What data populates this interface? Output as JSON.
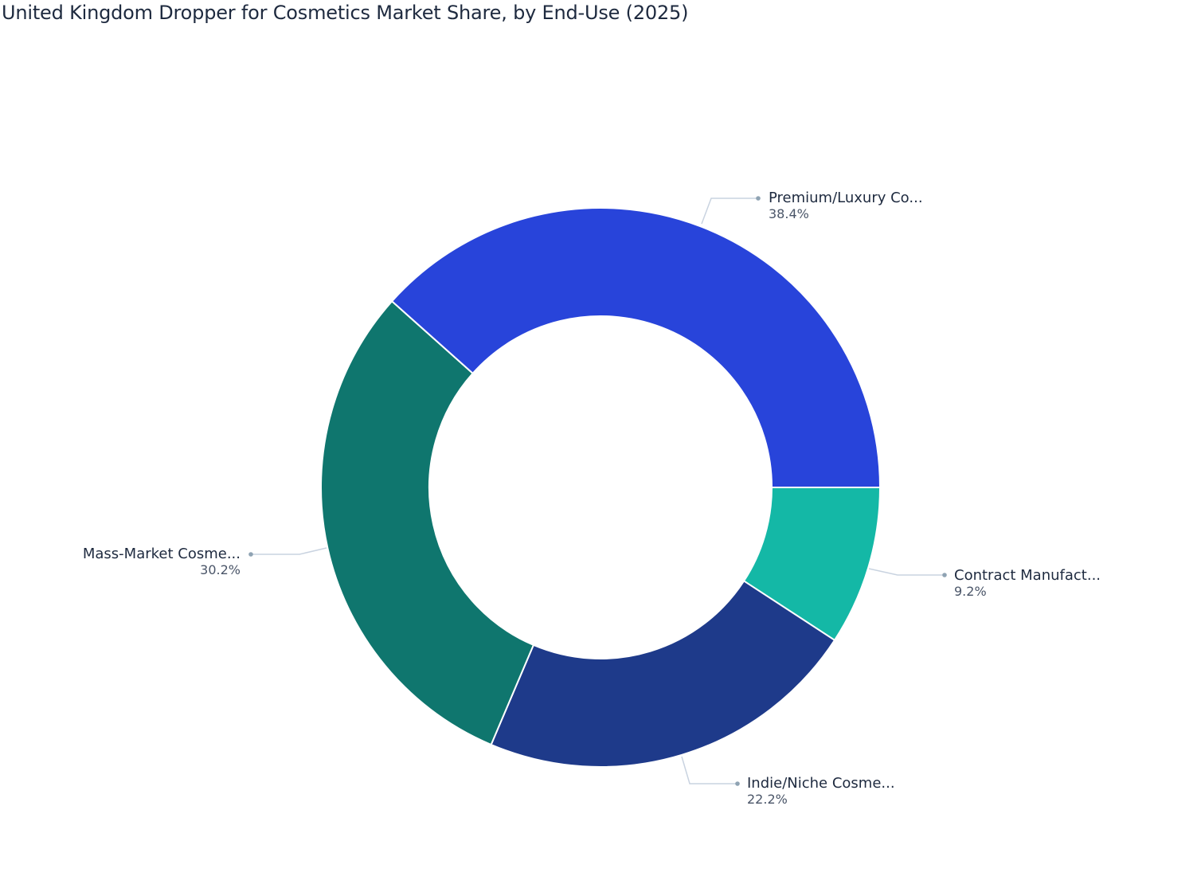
{
  "title": "United Kingdom Dropper for Cosmetics Market Share, by End-Use (2025)",
  "chart_data": {
    "type": "pie",
    "subtype": "donut",
    "title": "United Kingdom Dropper for Cosmetics Market Share, by End-Use (2025)",
    "categories": [
      "Contract Manufact...",
      "Indie/Niche Cosme...",
      "Mass-Market Cosme...",
      "Premium/Luxury Co..."
    ],
    "values": [
      9.2,
      22.2,
      30.2,
      38.4
    ],
    "unit": "%",
    "colors": [
      "#14b8a6",
      "#1e3a8a",
      "#0f766e",
      "#2844da"
    ],
    "hole": 0.61,
    "direction": "clockwise",
    "start_angle": "3 o'clock",
    "legend": "none (outside labels with leader lines)"
  },
  "labels": [
    {
      "name": "Premium/Luxury Co...",
      "pct": "38.4%"
    },
    {
      "name": "Contract Manufact...",
      "pct": "9.2%"
    },
    {
      "name": "Indie/Niche Cosme...",
      "pct": "22.2%"
    },
    {
      "name": "Mass-Market Cosme...",
      "pct": "30.2%"
    }
  ]
}
